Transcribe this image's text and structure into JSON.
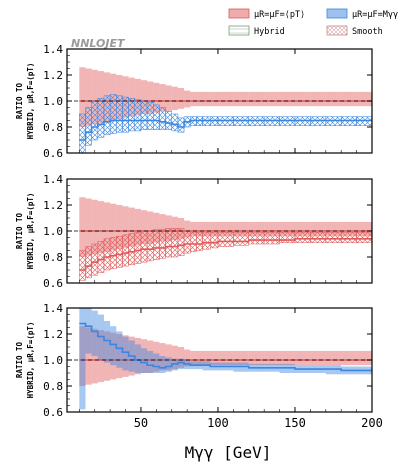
{
  "legend": {
    "scale_ptt": "μR=μF=⟨pT⟩",
    "scale_myy": "μR=μF=Mγγ",
    "hybrid": "Hybrid",
    "smooth": "Smooth"
  },
  "watermark": "NNLOJET",
  "colors": {
    "red": "#e05a5a",
    "blue": "#3b86e0",
    "hybrid": "#7a9a7a",
    "smooth": "#c88a8a"
  },
  "chart_data": [
    {
      "type": "area",
      "title": "",
      "ylabel_lines": [
        "RATIO TO",
        "HYBRID, μR,F=⟨pT⟩"
      ],
      "xlabel": "",
      "ylim": [
        0.6,
        1.4
      ],
      "yticks": [
        "0.6",
        "0.8",
        "1.0",
        "1.2",
        "1.4"
      ],
      "xlim": [
        2,
        200
      ],
      "reference_line": 1.0,
      "bin_edges": [
        10,
        14,
        18,
        22,
        26,
        30,
        34,
        38,
        42,
        46,
        50,
        54,
        58,
        62,
        66,
        70,
        74,
        78,
        82,
        86,
        90,
        95,
        100,
        110,
        120,
        130,
        140,
        150,
        160,
        170,
        180,
        190,
        200
      ],
      "series": [
        {
          "name": "μR=μF=⟨pT⟩ (Hybrid)",
          "color": "#e05a5a",
          "central": [
            1,
            1,
            1,
            1,
            1,
            1,
            1,
            1,
            1,
            1,
            1,
            1,
            1,
            1,
            1,
            1,
            1,
            1,
            1,
            1,
            1,
            1,
            1,
            1,
            1,
            1,
            1,
            1,
            1,
            1,
            1,
            1
          ],
          "low": [
            0.8,
            0.81,
            0.82,
            0.83,
            0.84,
            0.85,
            0.86,
            0.87,
            0.88,
            0.89,
            0.9,
            0.9,
            0.91,
            0.92,
            0.92,
            0.93,
            0.94,
            0.95,
            0.96,
            0.96,
            0.96,
            0.96,
            0.96,
            0.96,
            0.96,
            0.96,
            0.96,
            0.96,
            0.96,
            0.96,
            0.96,
            0.96
          ],
          "high": [
            1.26,
            1.25,
            1.24,
            1.23,
            1.22,
            1.21,
            1.2,
            1.19,
            1.18,
            1.17,
            1.16,
            1.15,
            1.14,
            1.13,
            1.12,
            1.11,
            1.1,
            1.08,
            1.07,
            1.07,
            1.07,
            1.07,
            1.07,
            1.07,
            1.07,
            1.07,
            1.07,
            1.07,
            1.07,
            1.07,
            1.07,
            1.07
          ],
          "hatched": false
        },
        {
          "name": "μR=μF=⟨pT⟩ (Smooth)",
          "color": "#3b86e0",
          "central": [
            0.7,
            0.76,
            0.8,
            0.82,
            0.84,
            0.85,
            0.85,
            0.85,
            0.85,
            0.85,
            0.85,
            0.85,
            0.85,
            0.84,
            0.83,
            0.82,
            0.8,
            0.84,
            0.85,
            0.85,
            0.85,
            0.85,
            0.85,
            0.85,
            0.85,
            0.85,
            0.85,
            0.85,
            0.85,
            0.85,
            0.85,
            0.85
          ],
          "low": [
            0.6,
            0.66,
            0.7,
            0.72,
            0.74,
            0.75,
            0.76,
            0.76,
            0.77,
            0.77,
            0.78,
            0.78,
            0.78,
            0.78,
            0.78,
            0.77,
            0.76,
            0.8,
            0.81,
            0.81,
            0.81,
            0.81,
            0.81,
            0.81,
            0.81,
            0.81,
            0.81,
            0.81,
            0.81,
            0.81,
            0.81,
            0.81
          ],
          "high": [
            0.9,
            0.95,
            1.0,
            1.02,
            1.04,
            1.05,
            1.04,
            1.03,
            1.02,
            1.01,
            1.0,
            0.99,
            0.97,
            0.95,
            0.92,
            0.9,
            0.87,
            0.88,
            0.88,
            0.88,
            0.88,
            0.88,
            0.88,
            0.88,
            0.88,
            0.88,
            0.88,
            0.88,
            0.88,
            0.88,
            0.88,
            0.88
          ],
          "hatched": true
        }
      ]
    },
    {
      "type": "area",
      "title": "",
      "ylabel_lines": [
        "RATIO TO",
        "HYBRID, μR,F=⟨pT⟩"
      ],
      "xlabel": "",
      "ylim": [
        0.6,
        1.4
      ],
      "yticks": [
        "0.6",
        "0.8",
        "1.0",
        "1.2",
        "1.4"
      ],
      "xlim": [
        2,
        200
      ],
      "reference_line": 1.0,
      "bin_edges": [
        10,
        14,
        18,
        22,
        26,
        30,
        34,
        38,
        42,
        46,
        50,
        54,
        58,
        62,
        66,
        70,
        74,
        78,
        82,
        86,
        90,
        95,
        100,
        110,
        120,
        130,
        140,
        150,
        160,
        170,
        180,
        190,
        200
      ],
      "series": [
        {
          "name": "μR=μF=⟨pT⟩ (Hybrid)",
          "color": "#e05a5a",
          "central": [
            1,
            1,
            1,
            1,
            1,
            1,
            1,
            1,
            1,
            1,
            1,
            1,
            1,
            1,
            1,
            1,
            1,
            1,
            1,
            1,
            1,
            1,
            1,
            1,
            1,
            1,
            1,
            1,
            1,
            1,
            1,
            1
          ],
          "low": [
            0.8,
            0.81,
            0.82,
            0.83,
            0.84,
            0.85,
            0.86,
            0.87,
            0.88,
            0.89,
            0.9,
            0.9,
            0.91,
            0.92,
            0.92,
            0.93,
            0.94,
            0.95,
            0.96,
            0.96,
            0.96,
            0.96,
            0.96,
            0.96,
            0.96,
            0.96,
            0.96,
            0.96,
            0.96,
            0.96,
            0.96,
            0.96
          ],
          "high": [
            1.26,
            1.25,
            1.24,
            1.23,
            1.22,
            1.21,
            1.2,
            1.19,
            1.18,
            1.17,
            1.16,
            1.15,
            1.14,
            1.13,
            1.12,
            1.11,
            1.1,
            1.08,
            1.07,
            1.07,
            1.07,
            1.07,
            1.07,
            1.07,
            1.07,
            1.07,
            1.07,
            1.07,
            1.07,
            1.07,
            1.07,
            1.07
          ],
          "hatched": false
        },
        {
          "name": "μR=μF=⟨pT⟩ (Smooth)",
          "color": "#e05a5a",
          "central": [
            0.7,
            0.73,
            0.76,
            0.78,
            0.8,
            0.81,
            0.82,
            0.83,
            0.84,
            0.85,
            0.86,
            0.86,
            0.87,
            0.87,
            0.88,
            0.88,
            0.89,
            0.9,
            0.9,
            0.9,
            0.91,
            0.91,
            0.92,
            0.92,
            0.93,
            0.93,
            0.93,
            0.94,
            0.94,
            0.94,
            0.94,
            0.94
          ],
          "low": [
            0.62,
            0.64,
            0.66,
            0.68,
            0.7,
            0.71,
            0.72,
            0.73,
            0.74,
            0.75,
            0.76,
            0.77,
            0.78,
            0.79,
            0.8,
            0.8,
            0.81,
            0.83,
            0.84,
            0.85,
            0.86,
            0.87,
            0.88,
            0.89,
            0.9,
            0.9,
            0.91,
            0.91,
            0.91,
            0.91,
            0.91,
            0.91
          ],
          "high": [
            0.85,
            0.88,
            0.9,
            0.92,
            0.94,
            0.95,
            0.96,
            0.97,
            0.98,
            0.99,
            1.0,
            1.0,
            1.01,
            1.01,
            1.02,
            1.02,
            1.02,
            1.0,
            0.99,
            0.99,
            0.99,
            0.99,
            0.99,
            0.99,
            0.99,
            0.99,
            0.99,
            0.99,
            0.99,
            0.99,
            0.99,
            0.99
          ],
          "hatched": true
        }
      ]
    },
    {
      "type": "area",
      "title": "",
      "ylabel_lines": [
        "RATIO TO",
        "HYBRID, μR,F=⟨pT⟩"
      ],
      "xlabel": "Mγγ [GeV]",
      "ylim": [
        0.6,
        1.4
      ],
      "yticks": [
        "0.6",
        "0.8",
        "1.0",
        "1.2",
        "1.4"
      ],
      "xticks": [
        "50",
        "100",
        "150",
        "200"
      ],
      "xlim": [
        2,
        200
      ],
      "reference_line": 1.0,
      "bin_edges": [
        10,
        14,
        18,
        22,
        26,
        30,
        34,
        38,
        42,
        46,
        50,
        54,
        58,
        62,
        66,
        70,
        74,
        78,
        82,
        86,
        90,
        95,
        100,
        110,
        120,
        130,
        140,
        150,
        160,
        170,
        180,
        190,
        200
      ],
      "series": [
        {
          "name": "μR=μF=⟨pT⟩ (Hybrid)",
          "color": "#e05a5a",
          "central": [
            1,
            1,
            1,
            1,
            1,
            1,
            1,
            1,
            1,
            1,
            1,
            1,
            1,
            1,
            1,
            1,
            1,
            1,
            1,
            1,
            1,
            1,
            1,
            1,
            1,
            1,
            1,
            1,
            1,
            1,
            1,
            1
          ],
          "low": [
            0.8,
            0.81,
            0.82,
            0.83,
            0.84,
            0.85,
            0.86,
            0.87,
            0.88,
            0.89,
            0.9,
            0.9,
            0.91,
            0.92,
            0.92,
            0.93,
            0.94,
            0.95,
            0.96,
            0.96,
            0.96,
            0.96,
            0.96,
            0.96,
            0.96,
            0.96,
            0.96,
            0.96,
            0.96,
            0.96,
            0.96,
            0.96
          ],
          "high": [
            1.26,
            1.25,
            1.24,
            1.23,
            1.22,
            1.21,
            1.2,
            1.19,
            1.18,
            1.17,
            1.16,
            1.15,
            1.14,
            1.13,
            1.12,
            1.11,
            1.1,
            1.08,
            1.07,
            1.07,
            1.07,
            1.07,
            1.07,
            1.07,
            1.07,
            1.07,
            1.07,
            1.07,
            1.07,
            1.07,
            1.07,
            1.07
          ],
          "hatched": false
        },
        {
          "name": "μR=μF=Mγγ (Hybrid)",
          "color": "#3b86e0",
          "central": [
            1.28,
            1.26,
            1.22,
            1.18,
            1.15,
            1.12,
            1.09,
            1.06,
            1.03,
            1.0,
            0.98,
            0.96,
            0.95,
            0.94,
            0.95,
            0.97,
            0.98,
            0.97,
            0.96,
            0.96,
            0.96,
            0.95,
            0.95,
            0.95,
            0.94,
            0.94,
            0.94,
            0.93,
            0.93,
            0.93,
            0.92,
            0.92
          ],
          "low": [
            0.62,
            1.05,
            1.03,
            1.0,
            0.98,
            0.96,
            0.94,
            0.92,
            0.91,
            0.9,
            0.9,
            0.9,
            0.9,
            0.9,
            0.91,
            0.92,
            0.93,
            0.93,
            0.93,
            0.93,
            0.92,
            0.92,
            0.92,
            0.91,
            0.91,
            0.91,
            0.9,
            0.9,
            0.9,
            0.89,
            0.89,
            0.89
          ],
          "high": [
            1.4,
            1.4,
            1.38,
            1.35,
            1.3,
            1.26,
            1.22,
            1.18,
            1.15,
            1.12,
            1.09,
            1.07,
            1.05,
            1.03,
            1.02,
            1.01,
            1.01,
            1.0,
            0.99,
            0.99,
            0.99,
            0.98,
            0.98,
            0.98,
            0.97,
            0.97,
            0.97,
            0.96,
            0.96,
            0.96,
            0.95,
            0.95
          ],
          "hatched": false
        }
      ]
    }
  ]
}
